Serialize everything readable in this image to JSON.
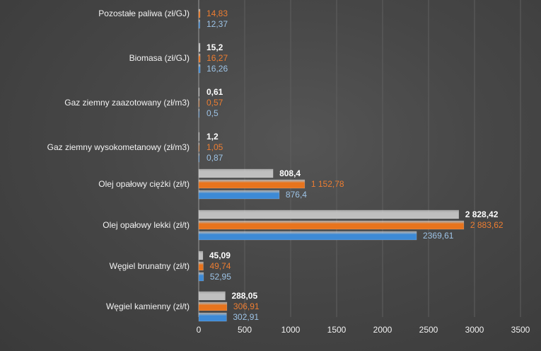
{
  "chart_data": {
    "type": "bar",
    "orientation": "horizontal",
    "categories": [
      "Pozostałe paliwa (zł/GJ)",
      "Biomasa (zł/GJ)",
      "Gaz ziemny zaazotowany (zł/m3)",
      "Gaz ziemny wysokometanowy (zł/m3)",
      "Olej opałowy ciężki (zł/t)",
      "Olej opałowy lekki (zł/t)",
      "Węgiel brunatny (zł/t)",
      "Węgiel kamienny (zł/t)"
    ],
    "series": [
      {
        "color": "#bfbfbf",
        "label_color": "#ffffff",
        "values": [
          null,
          15.2,
          0.61,
          1.2,
          808.4,
          2828.42,
          45.09,
          288.05
        ],
        "labels": [
          "",
          "15,2",
          "0,61",
          "1,2",
          "808,4",
          "2 828,42",
          "45,09",
          "288,05"
        ]
      },
      {
        "color": "#e8741d",
        "label_color": "#ed7d31",
        "values": [
          14.83,
          16.27,
          0.57,
          1.05,
          1152.78,
          2883.62,
          49.74,
          306.91
        ],
        "labels": [
          "14,83",
          "16,27",
          "0,57",
          "1,05",
          "1 152,78",
          "2 883,62",
          "49,74",
          "306,91"
        ]
      },
      {
        "color": "#3d8ad6",
        "label_color": "#9dc3e6",
        "values": [
          12.37,
          16.26,
          0.5,
          0.87,
          876.4,
          2369.61,
          52.95,
          302.91
        ],
        "labels": [
          "12,37",
          "16,26",
          "0,5",
          "0,87",
          "876,4",
          "2369,61",
          "52,95",
          "302,91"
        ]
      }
    ],
    "xlim": [
      0,
      3500
    ],
    "x_ticks": [
      "0",
      "500",
      "1000",
      "1500",
      "2000",
      "2500",
      "3000",
      "3500"
    ],
    "grid": true,
    "legend": "none"
  }
}
